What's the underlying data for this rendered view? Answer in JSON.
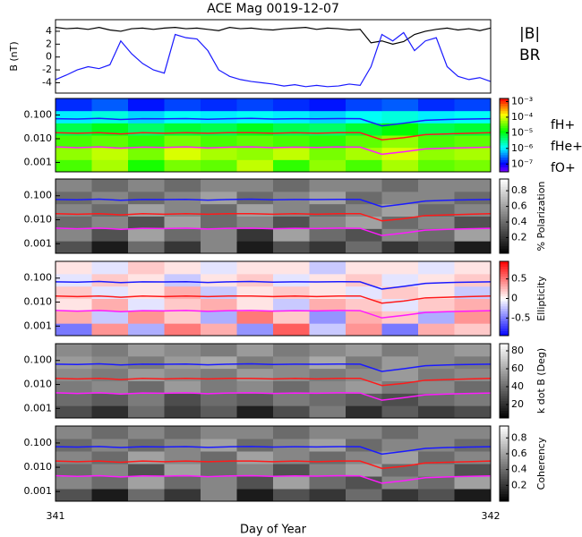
{
  "title": "ACE Mag 0019-12-07",
  "x_label": "Day of Year",
  "xlim": [
    341,
    342
  ],
  "xticks": [
    341,
    342
  ],
  "gyrofrequencies": {
    "x": [
      341,
      341.05,
      341.1,
      341.15,
      341.2,
      341.25,
      341.3,
      341.35,
      341.4,
      341.45,
      341.5,
      341.55,
      341.6,
      341.65,
      341.7,
      341.75,
      341.8,
      341.85,
      341.9,
      341.95,
      342
    ],
    "series": [
      {
        "name": "fH+",
        "color": "#1a1aff",
        "values": [
          0.07,
          0.068,
          0.072,
          0.065,
          0.07,
          0.069,
          0.071,
          0.066,
          0.07,
          0.072,
          0.068,
          0.07,
          0.069,
          0.071,
          0.07,
          0.035,
          0.045,
          0.06,
          0.065,
          0.068,
          0.07
        ]
      },
      {
        "name": "fHe+",
        "color": "#ff1a1a",
        "values": [
          0.018,
          0.017,
          0.018,
          0.016,
          0.018,
          0.017,
          0.018,
          0.017,
          0.018,
          0.018,
          0.017,
          0.018,
          0.017,
          0.018,
          0.018,
          0.009,
          0.011,
          0.015,
          0.016,
          0.017,
          0.018
        ]
      },
      {
        "name": "fO+",
        "color": "#ff1aff",
        "values": [
          0.0045,
          0.0042,
          0.0045,
          0.004,
          0.0044,
          0.0043,
          0.0045,
          0.0041,
          0.0044,
          0.0045,
          0.0042,
          0.0044,
          0.0043,
          0.0045,
          0.0044,
          0.0022,
          0.0028,
          0.0037,
          0.004,
          0.0042,
          0.0044
        ]
      }
    ]
  },
  "chart_data": [
    {
      "type": "line",
      "y_label": "B (nT)",
      "ylim": [
        -5.6,
        5.8
      ],
      "yticks": [
        -4,
        -2,
        0,
        2,
        4
      ],
      "x": [
        341,
        341.025,
        341.05,
        341.075,
        341.1,
        341.125,
        341.15,
        341.175,
        341.2,
        341.225,
        341.25,
        341.275,
        341.3,
        341.325,
        341.35,
        341.375,
        341.4,
        341.425,
        341.45,
        341.475,
        341.5,
        341.525,
        341.55,
        341.575,
        341.6,
        341.625,
        341.65,
        341.675,
        341.7,
        341.725,
        341.75,
        341.775,
        341.8,
        341.825,
        341.85,
        341.875,
        341.9,
        341.925,
        341.95,
        341.975,
        342
      ],
      "series": [
        {
          "name": "|B|",
          "color": "#000000",
          "values": [
            4.6,
            4.4,
            4.5,
            4.3,
            4.6,
            4.2,
            4.0,
            4.4,
            4.5,
            4.3,
            4.5,
            4.6,
            4.4,
            4.5,
            4.3,
            4.1,
            4.6,
            4.4,
            4.5,
            4.3,
            4.2,
            4.4,
            4.5,
            4.6,
            4.3,
            4.5,
            4.4,
            4.2,
            4.3,
            2.2,
            2.5,
            2.0,
            2.4,
            3.5,
            4.0,
            4.3,
            4.5,
            4.2,
            4.4,
            4.1,
            4.5
          ]
        },
        {
          "name": "BR",
          "color": "#1a1aff",
          "values": [
            -3.5,
            -2.8,
            -2.0,
            -1.5,
            -1.8,
            -1.2,
            2.5,
            0.5,
            -1.0,
            -2.0,
            -2.5,
            3.5,
            3.0,
            2.8,
            1.0,
            -2.0,
            -3.0,
            -3.5,
            -3.8,
            -4.0,
            -4.2,
            -4.5,
            -4.3,
            -4.6,
            -4.4,
            -4.6,
            -4.5,
            -4.2,
            -4.4,
            -1.5,
            3.5,
            2.5,
            3.8,
            1.0,
            2.5,
            3.0,
            -1.5,
            -3.0,
            -3.5,
            -3.2,
            -3.8
          ]
        }
      ]
    },
    {
      "type": "heatmap",
      "colormap": "rainbow",
      "ylim": [
        0.0004,
        0.5
      ],
      "yticks": [
        0.001,
        {
          "value": 0.01,
          "label": "0.010"
        },
        {
          "value": 0.1,
          "label": "0.100"
        }
      ],
      "zlim": [
        -7.5,
        -2.8
      ],
      "zticks": [
        {
          "value": -3,
          "label": "10⁻³"
        },
        {
          "value": -4,
          "label": "10⁻⁴"
        },
        {
          "value": -5,
          "label": "10⁻⁵"
        },
        {
          "value": -6,
          "label": "10⁻⁶"
        },
        {
          "value": -7,
          "label": "10⁻⁷"
        }
      ],
      "z": [
        [
          -4.6,
          -4.2,
          -4.8,
          -4.4,
          -4.5,
          -4.1,
          -4.7,
          -4.3,
          -4.6,
          -4.2,
          -4.5,
          -4.4
        ],
        [
          -4.3,
          -4.1,
          -4.4,
          -4.0,
          -4.2,
          -4.3,
          -4.1,
          -4.4,
          -4.2,
          -4.0,
          -4.3,
          -4.2
        ],
        [
          -4.6,
          -4.5,
          -4.7,
          -4.4,
          -4.6,
          -4.5,
          -4.6,
          -4.7,
          -4.5,
          -4.3,
          -4.6,
          -4.5
        ],
        [
          -5.2,
          -5.0,
          -5.3,
          -5.1,
          -5.2,
          -5.0,
          -5.2,
          -5.3,
          -5.1,
          -4.9,
          -5.2,
          -5.1
        ],
        [
          -6.0,
          -5.8,
          -6.1,
          -5.9,
          -6.0,
          -5.9,
          -6.0,
          -6.1,
          -5.9,
          -5.8,
          -6.0,
          -5.9
        ],
        [
          -6.8,
          -6.6,
          -6.9,
          -6.7,
          -6.8,
          -6.7,
          -6.8,
          -6.9,
          -6.7,
          -6.6,
          -6.8,
          -6.7
        ]
      ]
    },
    {
      "type": "heatmap",
      "colormap": "gray",
      "colorbar_label": "% Polarization",
      "ylim": [
        0.0004,
        0.5
      ],
      "yticks": [
        0.001,
        {
          "value": 0.01,
          "label": "0.010"
        },
        {
          "value": 0.1,
          "label": "0.100"
        }
      ],
      "zlim": [
        0,
        0.95
      ],
      "zticks": [
        0.2,
        0.4,
        0.6,
        0.8
      ],
      "z": [
        [
          0.3,
          0.1,
          0.4,
          0.2,
          0.5,
          0.1,
          0.3,
          0.2,
          0.4,
          0.2,
          0.3,
          0.1
        ],
        [
          0.5,
          0.3,
          0.6,
          0.4,
          0.5,
          0.2,
          0.6,
          0.4,
          0.3,
          0.5,
          0.4,
          0.6
        ],
        [
          0.4,
          0.5,
          0.3,
          0.6,
          0.4,
          0.5,
          0.3,
          0.5,
          0.6,
          0.4,
          0.5,
          0.3
        ],
        [
          0.5,
          0.4,
          0.6,
          0.5,
          0.4,
          0.6,
          0.5,
          0.4,
          0.5,
          0.6,
          0.4,
          0.5
        ],
        [
          0.4,
          0.5,
          0.4,
          0.5,
          0.6,
          0.4,
          0.5,
          0.6,
          0.4,
          0.5,
          0.5,
          0.4
        ],
        [
          0.5,
          0.4,
          0.5,
          0.4,
          0.5,
          0.5,
          0.4,
          0.5,
          0.5,
          0.4,
          0.5,
          0.5
        ]
      ]
    },
    {
      "type": "heatmap",
      "colormap": "bwr",
      "colorbar_label": "Ellipticity",
      "ylim": [
        0.0004,
        0.5
      ],
      "yticks": [
        0.001,
        {
          "value": 0.01,
          "label": "0.010"
        },
        {
          "value": 0.1,
          "label": "0.100"
        }
      ],
      "zlim": [
        -0.95,
        0.95
      ],
      "zticks": [
        -0.5,
        0,
        0.5
      ],
      "z": [
        [
          -0.5,
          0.4,
          -0.3,
          0.5,
          0.3,
          -0.4,
          0.6,
          -0.2,
          0.4,
          -0.5,
          0.3,
          0.2
        ],
        [
          0.3,
          -0.2,
          0.4,
          0.2,
          -0.3,
          0.5,
          0.2,
          -0.4,
          0.3,
          0.2,
          -0.3,
          0.4
        ],
        [
          0.1,
          0.3,
          -0.1,
          0.2,
          0.3,
          0.1,
          -0.2,
          0.3,
          0.2,
          -0.1,
          0.2,
          0.3
        ],
        [
          0.2,
          -0.1,
          0.1,
          0.3,
          -0.2,
          0.1,
          0.2,
          0.1,
          -0.1,
          0.2,
          0.1,
          -0.2
        ],
        [
          -0.1,
          0.2,
          0.1,
          -0.2,
          0.1,
          0.2,
          -0.1,
          0.1,
          0.2,
          -0.1,
          0.1,
          0.2
        ],
        [
          0.1,
          -0.1,
          0.2,
          0.1,
          -0.1,
          0.1,
          0.1,
          -0.2,
          0.1,
          0.1,
          -0.1,
          0.1
        ]
      ]
    },
    {
      "type": "heatmap",
      "colormap": "gray",
      "colorbar_label": "k dot B (Deg)",
      "ylim": [
        0.0004,
        0.5
      ],
      "yticks": [
        0.001,
        {
          "value": 0.01,
          "label": "0.010"
        },
        {
          "value": 0.1,
          "label": "0.100"
        }
      ],
      "zlim": [
        5,
        88
      ],
      "zticks": [
        20,
        40,
        60,
        80
      ],
      "z": [
        [
          30,
          20,
          40,
          25,
          35,
          15,
          30,
          45,
          20,
          35,
          25,
          30
        ],
        [
          40,
          35,
          45,
          30,
          40,
          35,
          45,
          40,
          35,
          30,
          40,
          45
        ],
        [
          45,
          50,
          40,
          55,
          45,
          50,
          40,
          50,
          55,
          45,
          50,
          40
        ],
        [
          50,
          45,
          55,
          50,
          45,
          55,
          50,
          45,
          50,
          55,
          45,
          50
        ],
        [
          55,
          50,
          45,
          55,
          60,
          45,
          50,
          60,
          45,
          55,
          50,
          45
        ],
        [
          50,
          45,
          55,
          50,
          45,
          55,
          45,
          50,
          55,
          45,
          50,
          55
        ]
      ]
    },
    {
      "type": "heatmap",
      "colormap": "gray",
      "colorbar_label": "Coherency",
      "ylim": [
        0.0004,
        0.5
      ],
      "yticks": [
        0.001,
        {
          "value": 0.01,
          "label": "0.010"
        },
        {
          "value": 0.1,
          "label": "0.100"
        }
      ],
      "zlim": [
        0,
        0.95
      ],
      "zticks": [
        0.2,
        0.4,
        0.6,
        0.8
      ],
      "z": [
        [
          0.3,
          0.1,
          0.4,
          0.2,
          0.5,
          0.1,
          0.3,
          0.2,
          0.4,
          0.2,
          0.3,
          0.1
        ],
        [
          0.5,
          0.4,
          0.6,
          0.4,
          0.5,
          0.3,
          0.6,
          0.4,
          0.3,
          0.5,
          0.4,
          0.6
        ],
        [
          0.4,
          0.5,
          0.3,
          0.6,
          0.4,
          0.5,
          0.3,
          0.5,
          0.6,
          0.4,
          0.5,
          0.3
        ],
        [
          0.5,
          0.4,
          0.6,
          0.5,
          0.4,
          0.6,
          0.5,
          0.4,
          0.5,
          0.6,
          0.4,
          0.5
        ],
        [
          0.4,
          0.5,
          0.4,
          0.5,
          0.6,
          0.4,
          0.5,
          0.6,
          0.4,
          0.5,
          0.5,
          0.4
        ],
        [
          0.5,
          0.4,
          0.5,
          0.4,
          0.5,
          0.5,
          0.4,
          0.5,
          0.5,
          0.4,
          0.5,
          0.5
        ]
      ]
    }
  ]
}
